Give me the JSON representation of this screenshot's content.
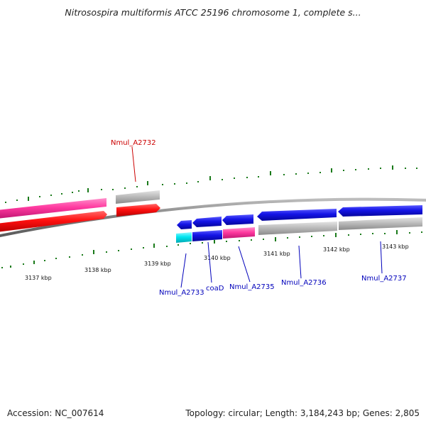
{
  "title": "Nitrosospira multiformis ATCC 25196 chromosome 1, complete s...",
  "footer": {
    "accession": "Accession: NC_007614",
    "summary": "Topology: circular; Length: 3,184,243 bp; Genes: 2,805"
  },
  "colors": {
    "backbone": "#888888",
    "tick": "#1a7a1a",
    "label_red": "#cc0000",
    "label_blue": "#0000bb",
    "red": "#ff1010",
    "pink": "#ff3aa0",
    "blue": "#1414e6",
    "gray": "#b9b9b9",
    "cyan": "#00e5f0"
  },
  "kbp_ticks": [
    {
      "label": "3137 kbp"
    },
    {
      "label": "3138 kbp"
    },
    {
      "label": "3139 kbp"
    },
    {
      "label": "3140 kbp"
    },
    {
      "label": "3141 kbp"
    },
    {
      "label": "3142 kbp"
    },
    {
      "label": "3143 kbp"
    }
  ],
  "genes": [
    {
      "label": "Nmul_A2732",
      "color": "label_red"
    },
    {
      "label": "Nmul_A2733",
      "color": "label_blue"
    },
    {
      "label": "coaD",
      "color": "label_blue"
    },
    {
      "label": "Nmul_A2735",
      "color": "label_blue"
    },
    {
      "label": "Nmul_A2736",
      "color": "label_blue"
    },
    {
      "label": "Nmul_A2737",
      "color": "label_blue"
    }
  ]
}
